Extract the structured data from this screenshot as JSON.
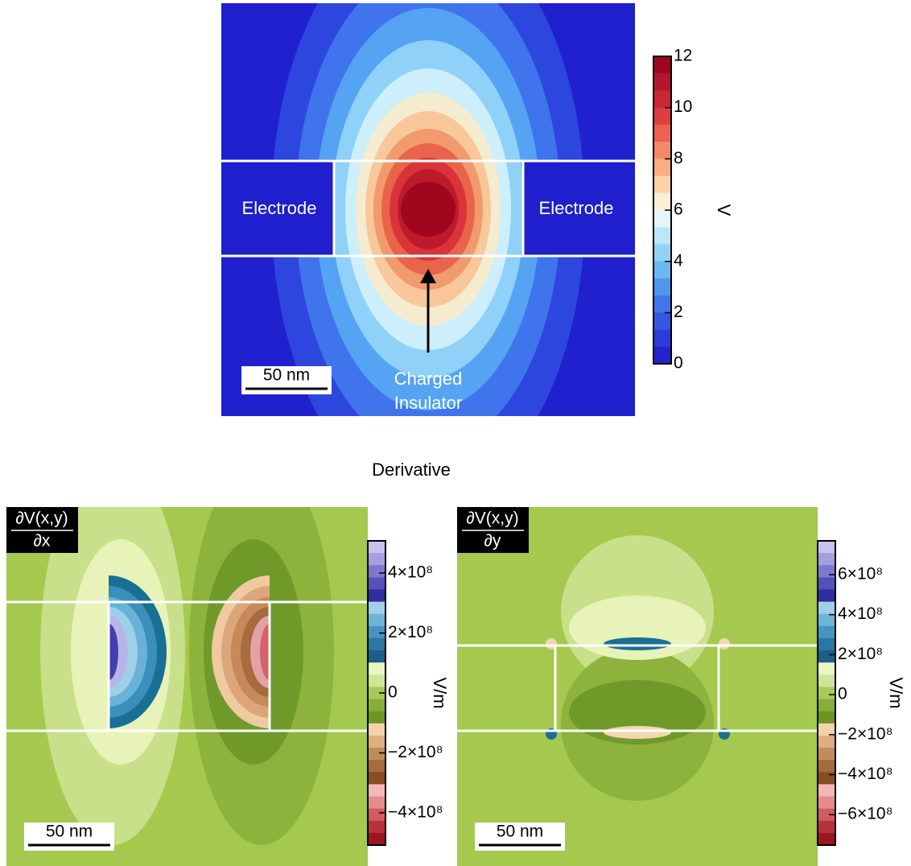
{
  "top_panel": {
    "electrode_left": "Electrode",
    "electrode_right": "Electrode",
    "annotation": [
      "Charged",
      "Insulator"
    ],
    "scale_bar": "50 nm",
    "colorbar": {
      "ticks": [
        "12",
        "10",
        "8",
        "6",
        "4",
        "2",
        "0"
      ],
      "unit": "V"
    }
  },
  "section_title": "Derivative",
  "left_panel": {
    "title": [
      "∂V(x,y)",
      "∂x"
    ],
    "scale_bar": "50 nm",
    "colorbar": {
      "ticks": [
        "4×10⁸",
        "2×10⁸",
        "0",
        "−2×10⁸",
        "−4×10⁸"
      ],
      "unit": "V/m"
    }
  },
  "right_panel": {
    "title": [
      "∂V(x,y)",
      "∂y"
    ],
    "scale_bar": "50 nm",
    "colorbar": {
      "ticks": [
        "6×10⁸",
        "4×10⁸",
        "2×10⁸",
        "0",
        "−2×10⁸",
        "−4×10⁸",
        "−6×10⁸"
      ],
      "unit": "V/m"
    }
  }
}
